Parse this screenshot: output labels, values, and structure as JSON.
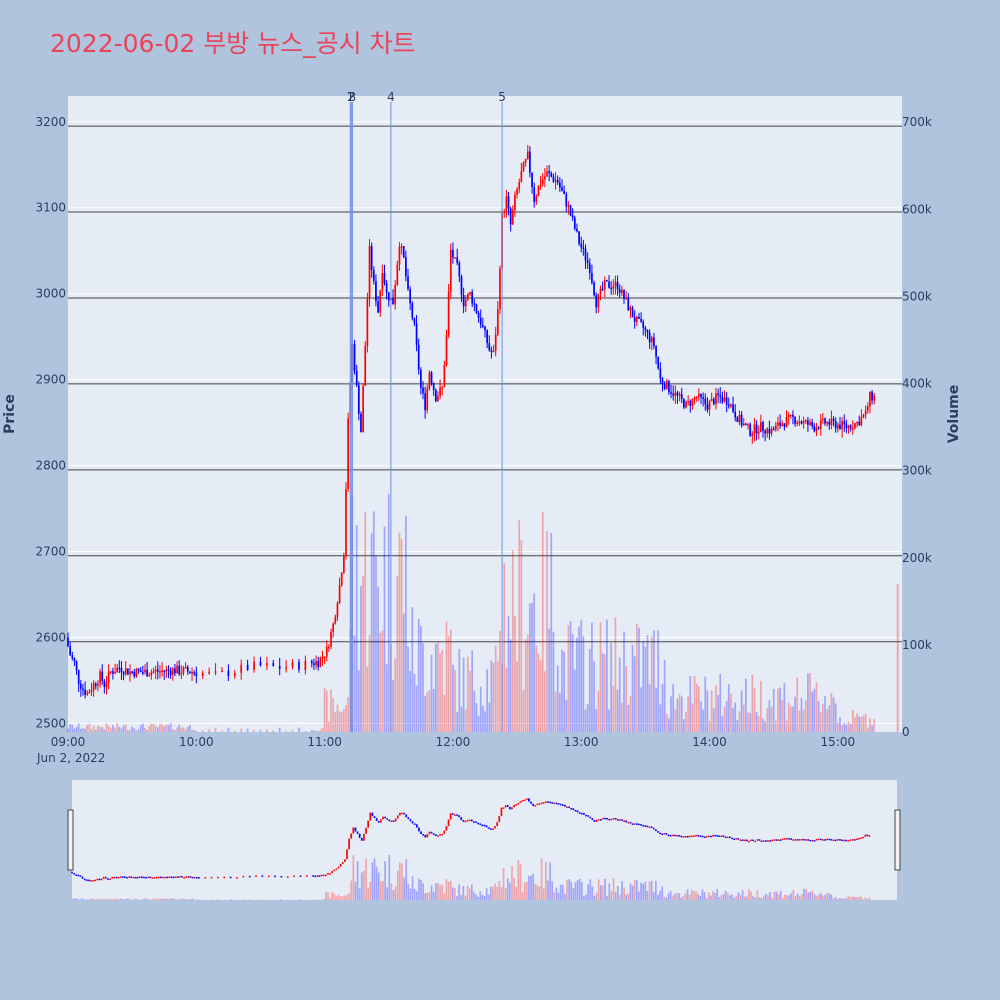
{
  "title": "2022-06-02 부방 뉴스_공시 차트",
  "colors": {
    "background": "#b0c4de",
    "plot_bg": "#e5ecf6",
    "up": "#ff0000",
    "down": "#0000ff",
    "title": "#e8455a",
    "gridline": "#444444",
    "annotation_line": "#6f8fe8"
  },
  "chart_data": {
    "type": "candlestick",
    "ylabel": "Price",
    "y2label": "Volume",
    "date_label": "Jun 2, 2022",
    "ylim": [
      2490,
      3230
    ],
    "y2lim": [
      0,
      730000
    ],
    "xlim_minutes": [
      540,
      930
    ],
    "price_ticks": [
      2500,
      2600,
      2700,
      2800,
      2900,
      3000,
      3100,
      3200
    ],
    "volume_ticks": [
      0,
      100000,
      200000,
      300000,
      400000,
      500000,
      600000,
      700000
    ],
    "volume_tick_labels": [
      "0",
      "100k",
      "200k",
      "300k",
      "400k",
      "500k",
      "600k",
      "700k"
    ],
    "time_ticks": [
      "09:00",
      "10:00",
      "11:00",
      "12:00",
      "13:00",
      "14:00",
      "15:00"
    ],
    "horizontal_lines": [
      2595,
      2695,
      2795,
      2895,
      2995,
      3095,
      3195
    ],
    "news_markers": [
      {
        "label": "1",
        "time": "11:12"
      },
      {
        "label": "2",
        "time": "11:12"
      },
      {
        "label": "3",
        "time": "11:13"
      },
      {
        "label": "4",
        "time": "11:31"
      },
      {
        "label": "5",
        "time": "12:23"
      }
    ],
    "price_path": [
      [
        "09:00",
        2600
      ],
      [
        "09:02",
        2580
      ],
      [
        "09:04",
        2570
      ],
      [
        "09:06",
        2550
      ],
      [
        "09:08",
        2540
      ],
      [
        "09:10",
        2535
      ],
      [
        "09:13",
        2545
      ],
      [
        "09:16",
        2555
      ],
      [
        "09:18",
        2545
      ],
      [
        "09:21",
        2560
      ],
      [
        "09:25",
        2565
      ],
      [
        "09:30",
        2560
      ],
      [
        "09:40",
        2560
      ],
      [
        "09:50",
        2562
      ],
      [
        "10:00",
        2560
      ],
      [
        "10:10",
        2556
      ],
      [
        "10:20",
        2562
      ],
      [
        "10:25",
        2565
      ],
      [
        "10:30",
        2567
      ],
      [
        "10:40",
        2565
      ],
      [
        "10:50",
        2568
      ],
      [
        "10:58",
        2572
      ],
      [
        "11:02",
        2585
      ],
      [
        "11:05",
        2615
      ],
      [
        "11:08",
        2660
      ],
      [
        "11:10",
        2700
      ],
      [
        "11:12",
        2850
      ],
      [
        "11:14",
        2940
      ],
      [
        "11:16",
        2890
      ],
      [
        "11:18",
        2840
      ],
      [
        "11:20",
        2940
      ],
      [
        "11:22",
        3050
      ],
      [
        "11:24",
        3010
      ],
      [
        "11:26",
        2980
      ],
      [
        "11:28",
        3030
      ],
      [
        "11:30",
        3000
      ],
      [
        "11:33",
        2990
      ],
      [
        "11:36",
        3060
      ],
      [
        "11:38",
        3040
      ],
      [
        "11:40",
        3000
      ],
      [
        "11:43",
        2960
      ],
      [
        "11:46",
        2890
      ],
      [
        "11:48",
        2870
      ],
      [
        "11:50",
        2910
      ],
      [
        "11:53",
        2880
      ],
      [
        "11:56",
        2890
      ],
      [
        "11:58",
        2950
      ],
      [
        "12:00",
        3050
      ],
      [
        "12:03",
        3030
      ],
      [
        "12:06",
        2990
      ],
      [
        "12:09",
        3000
      ],
      [
        "12:12",
        2980
      ],
      [
        "12:15",
        2960
      ],
      [
        "12:18",
        2935
      ],
      [
        "12:20",
        2930
      ],
      [
        "12:22",
        2980
      ],
      [
        "12:24",
        3090
      ],
      [
        "12:26",
        3110
      ],
      [
        "12:28",
        3080
      ],
      [
        "12:30",
        3110
      ],
      [
        "12:33",
        3140
      ],
      [
        "12:36",
        3160
      ],
      [
        "12:39",
        3110
      ],
      [
        "12:42",
        3130
      ],
      [
        "12:45",
        3140
      ],
      [
        "12:50",
        3130
      ],
      [
        "12:55",
        3100
      ],
      [
        "13:00",
        3060
      ],
      [
        "13:05",
        3030
      ],
      [
        "13:08",
        2990
      ],
      [
        "13:12",
        3010
      ],
      [
        "13:18",
        3010
      ],
      [
        "13:22",
        2990
      ],
      [
        "13:26",
        2970
      ],
      [
        "13:30",
        2960
      ],
      [
        "13:35",
        2940
      ],
      [
        "13:38",
        2900
      ],
      [
        "13:42",
        2890
      ],
      [
        "13:46",
        2880
      ],
      [
        "13:50",
        2870
      ],
      [
        "13:55",
        2880
      ],
      [
        "14:00",
        2870
      ],
      [
        "14:05",
        2880
      ],
      [
        "14:10",
        2875
      ],
      [
        "14:13",
        2860
      ],
      [
        "14:16",
        2850
      ],
      [
        "14:20",
        2840
      ],
      [
        "14:25",
        2845
      ],
      [
        "14:30",
        2840
      ],
      [
        "14:35",
        2850
      ],
      [
        "14:40",
        2855
      ],
      [
        "14:45",
        2850
      ],
      [
        "14:50",
        2845
      ],
      [
        "14:55",
        2850
      ],
      [
        "15:00",
        2848
      ],
      [
        "15:05",
        2845
      ],
      [
        "15:10",
        2850
      ],
      [
        "15:14",
        2860
      ],
      [
        "15:16",
        2880
      ],
      [
        "15:17",
        2880
      ]
    ]
  }
}
